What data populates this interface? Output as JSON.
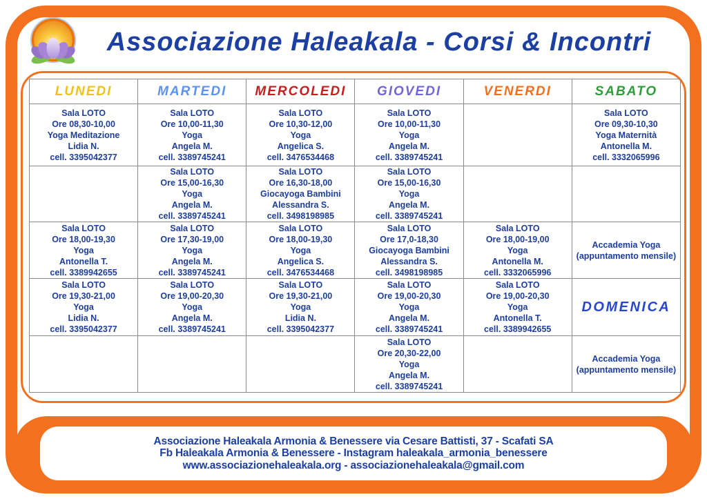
{
  "header": {
    "title": "Associazione Haleakala - Corsi & Incontri",
    "title_color": "#1b3fa3",
    "logo": "lotus-sun-logo"
  },
  "theme": {
    "frame_orange": "#F3701E",
    "cell_text_blue": "#1d3e9b",
    "grid_gray": "#8a8a8a"
  },
  "schedule": {
    "days": [
      {
        "label": "LUNEDI",
        "color": "#F2C118"
      },
      {
        "label": "MARTEDI",
        "color": "#5E92F0"
      },
      {
        "label": "MERCOLEDI",
        "color": "#C41E1E"
      },
      {
        "label": "GIOVEDI",
        "color": "#6F66DB"
      },
      {
        "label": "VENERDI",
        "color": "#F3701E"
      },
      {
        "label": "SABATO",
        "color": "#2F9E38"
      }
    ],
    "rows": [
      [
        {
          "type": "class",
          "lines": [
            "Sala LOTO",
            "Ore 08,30-10,00",
            "Yoga Meditazione",
            "Lidia N.",
            "cell. 3395042377"
          ]
        },
        {
          "type": "class",
          "lines": [
            "Sala LOTO",
            "Ore 10,00-11,30",
            "Yoga",
            "Angela M.",
            "cell. 3389745241"
          ]
        },
        {
          "type": "class",
          "lines": [
            "Sala LOTO",
            "Ore 10,30-12,00",
            "Yoga",
            "Angelica S.",
            "cell. 3476534468"
          ]
        },
        {
          "type": "class",
          "lines": [
            "Sala LOTO",
            "Ore 10,00-11,30",
            "Yoga",
            "Angela M.",
            "cell. 3389745241"
          ]
        },
        null,
        {
          "type": "class",
          "lines": [
            "Sala LOTO",
            "Ore 09,30-10,30",
            "Yoga Maternità",
            "Antonella M.",
            "cell. 3332065996"
          ]
        }
      ],
      [
        null,
        {
          "type": "class",
          "lines": [
            "Sala LOTO",
            "Ore 15,00-16,30",
            "Yoga",
            "Angela M.",
            "cell. 3389745241"
          ]
        },
        {
          "type": "class",
          "lines": [
            "Sala LOTO",
            "Ore 16,30-18,00",
            "Giocayoga Bambini",
            "Alessandra S.",
            "cell. 3498198985"
          ]
        },
        {
          "type": "class",
          "lines": [
            "Sala LOTO",
            "Ore 15,00-16,30",
            "Yoga",
            "Angela M.",
            "cell. 3389745241"
          ]
        },
        null,
        null
      ],
      [
        {
          "type": "class",
          "lines": [
            "Sala LOTO",
            "Ore 18,00-19,30",
            "Yoga",
            "Antonella T.",
            "cell. 3389942655"
          ]
        },
        {
          "type": "class",
          "lines": [
            "Sala LOTO",
            "Ore 17,30-19,00",
            "Yoga",
            "Angela M.",
            "cell. 3389745241"
          ]
        },
        {
          "type": "class",
          "lines": [
            "Sala LOTO",
            "Ore 18,00-19,30",
            "Yoga",
            "Angelica S.",
            "cell. 3476534468"
          ]
        },
        {
          "type": "class",
          "lines": [
            "Sala LOTO",
            "Ore 17,0-18,30",
            "Giocayoga Bambini",
            "Alessandra S.",
            "cell. 3498198985"
          ]
        },
        {
          "type": "class",
          "lines": [
            "Sala LOTO",
            "Ore 18,00-19,00",
            "Yoga",
            "Antonella M.",
            "cell. 3332065996"
          ]
        },
        {
          "type": "note",
          "lines": [
            "Accademia Yoga",
            "(appuntamento mensile)"
          ]
        }
      ],
      [
        {
          "type": "class",
          "lines": [
            "Sala LOTO",
            "Ore 19,30-21,00",
            "Yoga",
            "Lidia N.",
            "cell. 3395042377"
          ]
        },
        {
          "type": "class",
          "lines": [
            "Sala LOTO",
            "Ore 19,00-20,30",
            "Yoga",
            "Angela M.",
            "cell. 3389745241"
          ]
        },
        {
          "type": "class",
          "lines": [
            "Sala LOTO",
            "Ore 19,30-21,00",
            "Yoga",
            "Lidia N.",
            "cell. 3395042377"
          ]
        },
        {
          "type": "class",
          "lines": [
            "Sala LOTO",
            "Ore 19,00-20,30",
            "Yoga",
            "Angela M.",
            "cell. 3389745241"
          ]
        },
        {
          "type": "class",
          "lines": [
            "Sala LOTO",
            "Ore 19,00-20,30",
            "Yoga",
            "Antonella T.",
            "cell. 3389942655"
          ]
        },
        {
          "type": "day",
          "lines": [
            "DOMENICA"
          ],
          "color": "#2747d0"
        }
      ],
      [
        null,
        null,
        null,
        {
          "type": "class",
          "lines": [
            "Sala LOTO",
            "Ore 20,30-22,00",
            "Yoga",
            "Angela M.",
            "cell. 3389745241"
          ]
        },
        null,
        {
          "type": "note",
          "lines": [
            "Accademia Yoga",
            "(appuntamento mensile)"
          ]
        }
      ]
    ]
  },
  "footer": {
    "line1": "Associazione Haleakala Armonia & Benessere  via Cesare Battisti, 37 - Scafati SA",
    "line2": "Fb Haleakala Armonia & Benessere - Instagram haleakala_armonia_benessere",
    "line3": "www.associazionehaleakala.org  -  associazionehaleakala@gmail.com"
  }
}
